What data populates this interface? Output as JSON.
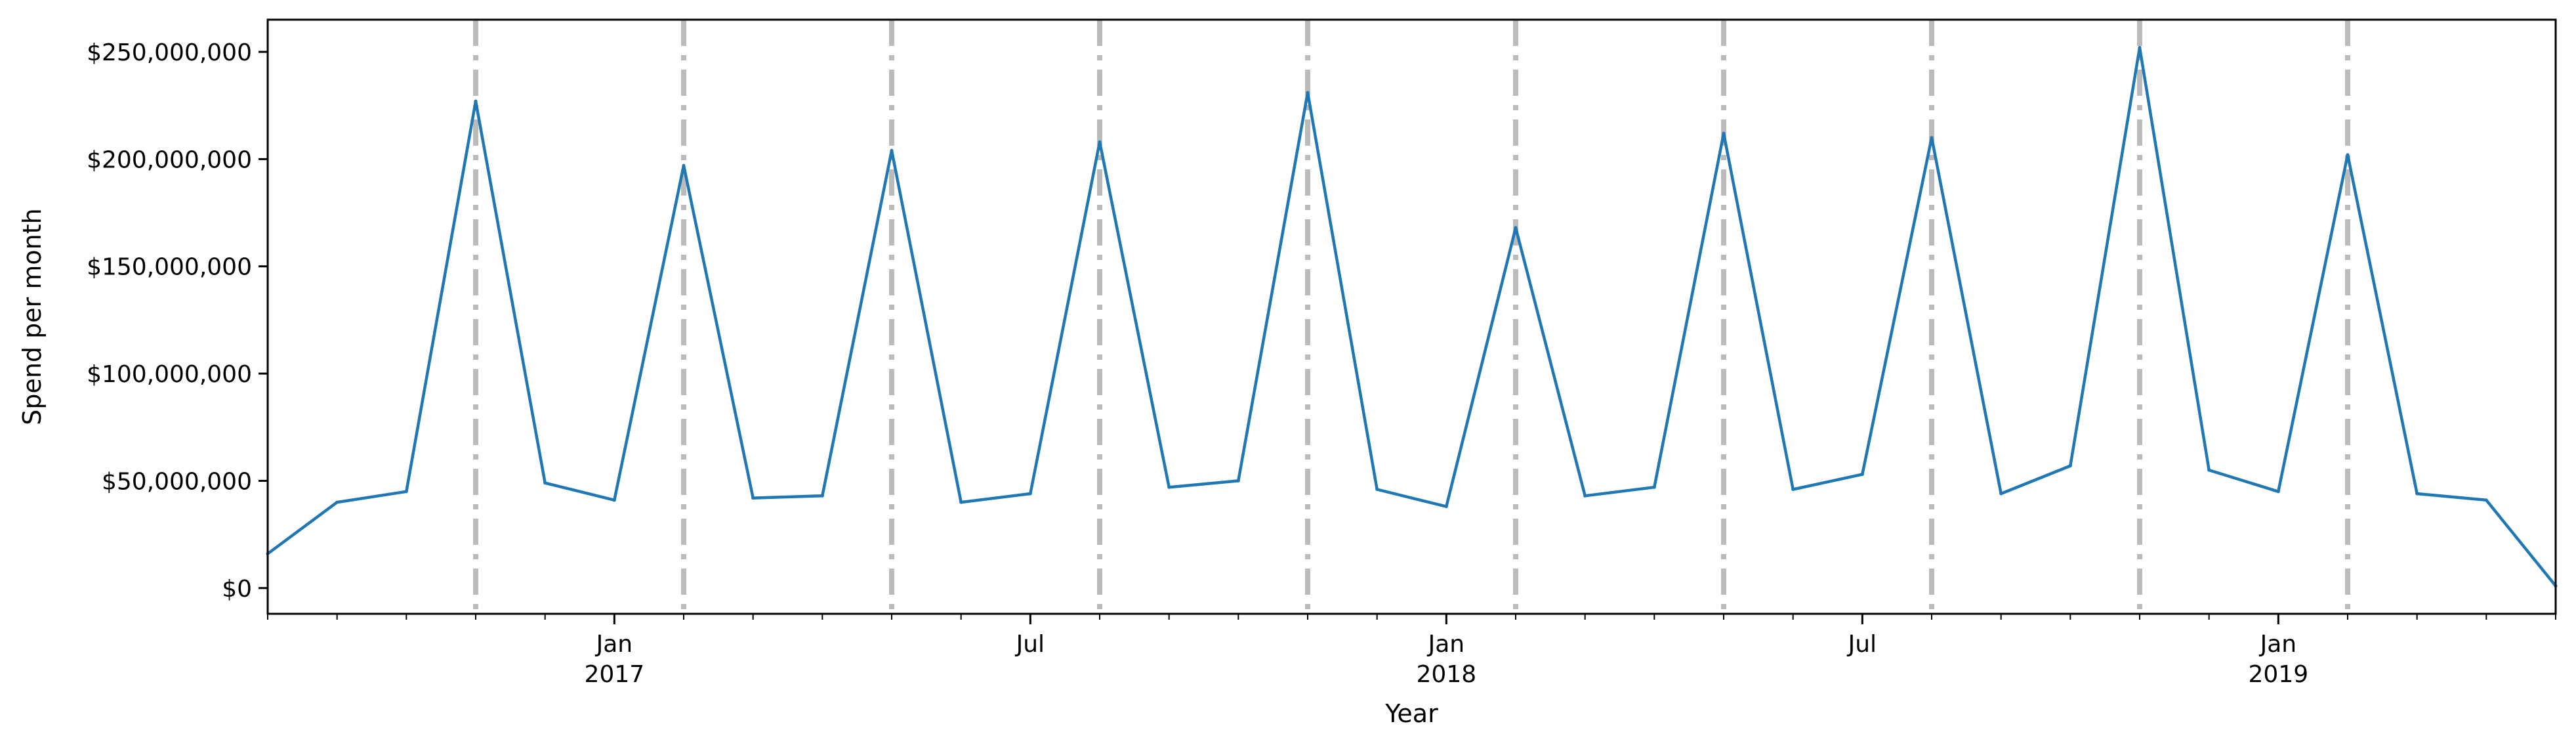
{
  "chart_data": {
    "type": "line",
    "title": "",
    "xlabel": "Year",
    "ylabel": "Spend per month",
    "xlim": [
      "2016-08",
      "2019-05"
    ],
    "ylim": [
      -12000000,
      265000000
    ],
    "y_ticks": [
      {
        "value": 0,
        "label": "$0"
      },
      {
        "value": 50000000,
        "label": "$50,000,000"
      },
      {
        "value": 100000000,
        "label": "$100,000,000"
      },
      {
        "value": 150000000,
        "label": "$150,000,000"
      },
      {
        "value": 200000000,
        "label": "$200,000,000"
      },
      {
        "value": 250000000,
        "label": "$250,000,000"
      }
    ],
    "x_ticks": [
      {
        "value": "2017-01",
        "label": "Jan",
        "sublabel": "2017"
      },
      {
        "value": "2017-07",
        "label": "Jul",
        "sublabel": ""
      },
      {
        "value": "2018-01",
        "label": "Jan",
        "sublabel": "2018"
      },
      {
        "value": "2018-07",
        "label": "Jul",
        "sublabel": ""
      },
      {
        "value": "2019-01",
        "label": "Jan",
        "sublabel": "2019"
      }
    ],
    "series": [
      {
        "color": "#1f77b4",
        "x": [
          "2016-08",
          "2016-09",
          "2016-10",
          "2016-11",
          "2016-12",
          "2017-01",
          "2017-02",
          "2017-03",
          "2017-04",
          "2017-05",
          "2017-06",
          "2017-07",
          "2017-08",
          "2017-09",
          "2017-10",
          "2017-11",
          "2017-12",
          "2018-01",
          "2018-02",
          "2018-03",
          "2018-04",
          "2018-05",
          "2018-06",
          "2018-07",
          "2018-08",
          "2018-09",
          "2018-10",
          "2018-11",
          "2018-12",
          "2019-01",
          "2019-02",
          "2019-03",
          "2019-04",
          "2019-05"
        ],
        "values": [
          16000000,
          40000000,
          45000000,
          227000000,
          49000000,
          41000000,
          197000000,
          42000000,
          43000000,
          204000000,
          40000000,
          44000000,
          208000000,
          47000000,
          50000000,
          231000000,
          46000000,
          38000000,
          168000000,
          43000000,
          47000000,
          212000000,
          46000000,
          53000000,
          210000000,
          44000000,
          57000000,
          252000000,
          55000000,
          45000000,
          202000000,
          44000000,
          41000000,
          1000000
        ]
      }
    ],
    "vlines": {
      "color": "#bbbbbb",
      "style": "dashdot",
      "x": [
        "2016-11",
        "2017-02",
        "2017-05",
        "2017-08",
        "2017-11",
        "2018-02",
        "2018-05",
        "2018-08",
        "2018-11",
        "2019-02"
      ]
    },
    "grid": false,
    "legend": "none"
  }
}
